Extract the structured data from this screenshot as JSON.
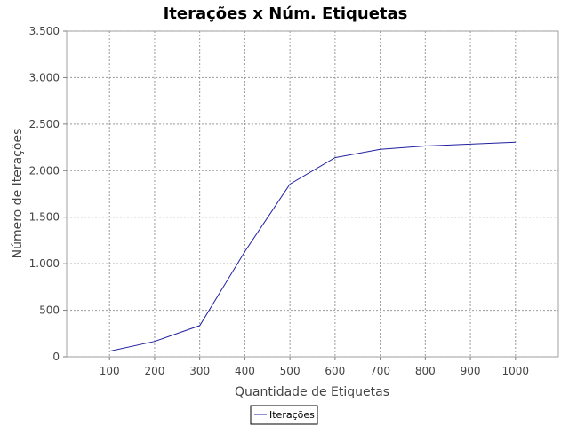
{
  "chart_data": {
    "type": "line",
    "title": "Iterações x Núm. Etiquetas",
    "xlabel": "Quantidade de Etiquetas",
    "ylabel": "Número de Iterações",
    "x": [
      100,
      200,
      300,
      400,
      500,
      600,
      700,
      800,
      900,
      1000
    ],
    "x_tick_labels": [
      "100",
      "200",
      "300",
      "400",
      "500",
      "600",
      "700",
      "800",
      "900",
      "1000"
    ],
    "y_ticks": [
      0,
      500,
      1000,
      1500,
      2000,
      2500,
      3000,
      3500
    ],
    "y_tick_labels": [
      "0",
      "500",
      "1.000",
      "1.500",
      "2.000",
      "2.500",
      "3.000",
      "3.500"
    ],
    "xlim": [
      5,
      1095
    ],
    "ylim": [
      0,
      3500
    ],
    "grid": true,
    "legend_position": "bottom-center",
    "series": [
      {
        "name": "Iterações",
        "color": "#2020a0",
        "values": [
          60,
          165,
          335,
          1130,
          1855,
          2140,
          2230,
          2265,
          2285,
          2305
        ]
      }
    ]
  }
}
